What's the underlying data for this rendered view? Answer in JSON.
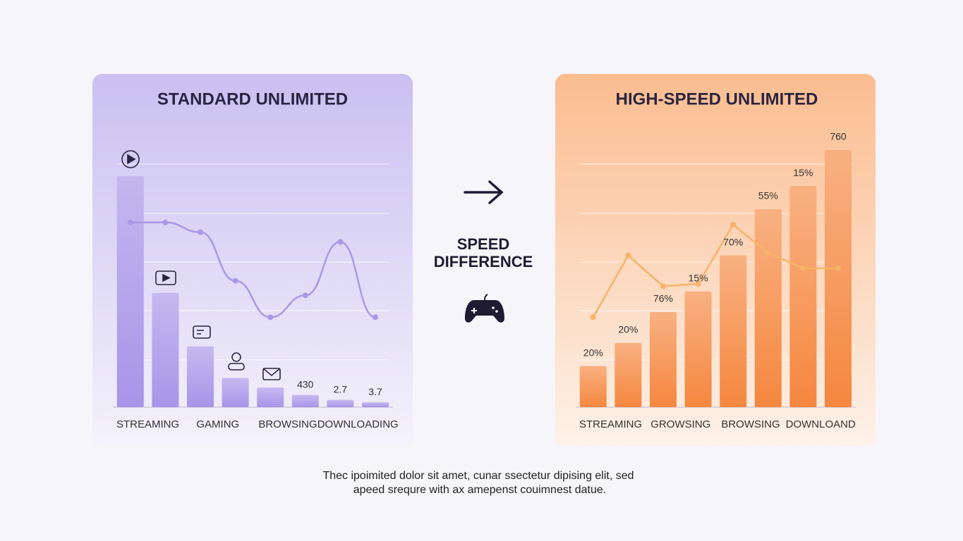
{
  "chart_data": [
    {
      "type": "bar",
      "title": "STANDARD UNLIMITED",
      "categories": [
        "STREAMING",
        null,
        "GAMING",
        null,
        "BROWSING",
        null,
        "DOWNLOADING",
        null
      ],
      "values": [
        95,
        47,
        25,
        12,
        8,
        5,
        3,
        2
      ],
      "line": [
        76,
        76,
        72,
        52,
        37,
        46,
        68,
        37
      ],
      "annotations": [
        "430",
        "2.7",
        "3.7"
      ],
      "color": "#9a86e4",
      "line_color": "#a999e8",
      "ylim": [
        0,
        100
      ]
    },
    {
      "type": "bar",
      "title": "HIGH-SPEED UNLIMITED",
      "categories": [
        "STREAMING",
        null,
        "GROWSING",
        null,
        "BROWSING",
        null,
        "DOWNLOAND",
        null
      ],
      "values": [
        16,
        25,
        37,
        45,
        59,
        77,
        86,
        100
      ],
      "line": [
        35,
        59,
        47,
        48,
        71,
        60,
        54,
        54
      ],
      "annotations": [
        "20%",
        "20%",
        "76%",
        "15%",
        "70%",
        "55%",
        "15%",
        "760"
      ],
      "color": "#f5873f",
      "line_color": "#f6b36a",
      "ylim": [
        0,
        100
      ]
    }
  ],
  "center_label": [
    "SPEED",
    "DIFFERENCE"
  ],
  "caption": [
    "Thec ipoimited dolor sit amet, cunar ssectetur dipising elit, sed",
    "apeed srequre with ax amepenst couimnest datue."
  ]
}
